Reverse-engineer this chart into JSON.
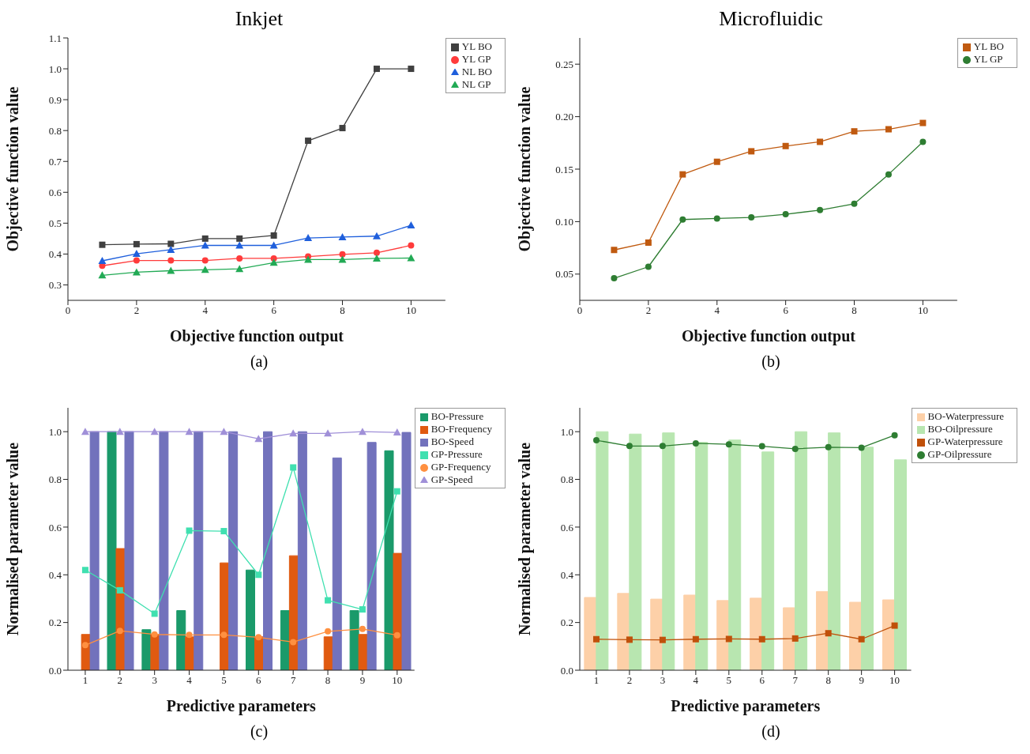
{
  "chart_data": [
    {
      "type": "line",
      "title": "Inkjet",
      "xlabel": "Objective function output",
      "ylabel": "Objective function value",
      "annotations": [
        "(a)"
      ],
      "x": [
        1,
        2,
        3,
        4,
        5,
        6,
        7,
        8,
        9,
        10
      ],
      "series": [
        {
          "name": "YL BO",
          "color": "#404040",
          "marker": "square",
          "values": [
            0.43,
            0.432,
            0.433,
            0.45,
            0.45,
            0.46,
            0.767,
            0.808,
            1.0,
            1.0
          ]
        },
        {
          "name": "YL GP",
          "color": "#ff3b3b",
          "marker": "circle",
          "values": [
            0.362,
            0.379,
            0.379,
            0.379,
            0.386,
            0.386,
            0.392,
            0.399,
            0.404,
            0.428
          ]
        },
        {
          "name": "NL BO",
          "color": "#1f5fdc",
          "marker": "triangle",
          "values": [
            0.378,
            0.401,
            0.414,
            0.428,
            0.428,
            0.428,
            0.452,
            0.455,
            0.458,
            0.493
          ]
        },
        {
          "name": "NL GP",
          "color": "#22aa55",
          "marker": "triangle",
          "values": [
            0.331,
            0.341,
            0.346,
            0.349,
            0.352,
            0.372,
            0.382,
            0.382,
            0.386,
            0.387
          ]
        }
      ],
      "xlim": [
        0,
        11
      ],
      "xticks": [
        0,
        2,
        4,
        6,
        8,
        10
      ],
      "ylim": [
        0.25,
        1.1
      ],
      "yticks": [
        0.3,
        0.4,
        0.5,
        0.6,
        0.7,
        0.8,
        0.9,
        {
          "value": 1.0,
          "label": "1.0"
        },
        1.1
      ],
      "legend": "top right"
    },
    {
      "type": "line",
      "title": "Microfluidic",
      "xlabel": "Objective function output",
      "ylabel": "Objective function value",
      "annotations": [
        "(b)"
      ],
      "x": [
        1,
        2,
        3,
        4,
        5,
        6,
        7,
        8,
        9,
        10
      ],
      "series": [
        {
          "name": "YL BO",
          "color": "#c05a10",
          "marker": "square",
          "values": [
            0.073,
            0.08,
            0.145,
            0.157,
            0.167,
            0.172,
            0.176,
            0.186,
            0.188,
            0.194
          ]
        },
        {
          "name": "YL GP",
          "color": "#2e7d32",
          "marker": "circle",
          "values": [
            0.046,
            0.057,
            0.102,
            0.103,
            0.104,
            0.107,
            0.111,
            0.117,
            0.145,
            0.176
          ]
        }
      ],
      "xlim": [
        0,
        11
      ],
      "xticks": [
        0,
        2,
        4,
        6,
        8,
        10
      ],
      "ylim": [
        0.025,
        0.275
      ],
      "yticks": [
        0.05,
        {
          "value": 0.1,
          "label": "0.10"
        },
        0.15,
        {
          "value": 0.2,
          "label": "0.20"
        },
        0.25
      ],
      "legend": "top right"
    },
    {
      "type": "bar",
      "xlabel": "Predictive parameters",
      "ylabel": "Normalised parameter value",
      "annotations": [
        "(c)"
      ],
      "categories": [
        "1",
        "2",
        "3",
        "4",
        "5",
        "6",
        "7",
        "8",
        "9",
        "10"
      ],
      "series": [
        {
          "name": "BO-Pressure",
          "color": "#1a9a6a",
          "values": [
            null,
            1.0,
            0.17,
            0.25,
            null,
            0.42,
            0.25,
            null,
            0.25,
            0.92
          ]
        },
        {
          "name": "BO-Frequency",
          "color": "#e05a10",
          "values": [
            0.15,
            0.51,
            0.15,
            0.14,
            0.45,
            0.14,
            0.48,
            0.14,
            0.15,
            0.49
          ]
        },
        {
          "name": "BO-Speed",
          "color": "#7272bc",
          "values": [
            1.0,
            1.0,
            1.0,
            1.0,
            1.0,
            1.0,
            1.0,
            0.89,
            0.955,
            0.997
          ]
        },
        {
          "name": "GP-Pressure",
          "type": "line",
          "color": "#40e0b0",
          "marker": "square",
          "values": [
            0.42,
            0.335,
            0.237,
            0.585,
            0.583,
            0.4,
            0.85,
            0.293,
            0.255,
            0.75
          ]
        },
        {
          "name": "GP-Frequency",
          "type": "line",
          "color": "#ff9040",
          "marker": "circle",
          "values": [
            0.105,
            0.165,
            0.15,
            0.148,
            0.148,
            0.138,
            0.118,
            0.163,
            0.173,
            0.147
          ]
        },
        {
          "name": "GP-Speed",
          "type": "line",
          "color": "#a090d8",
          "marker": "triangle",
          "values": [
            1.0,
            1.0,
            1.0,
            1.0,
            1.0,
            0.97,
            0.993,
            0.993,
            1.0,
            0.997
          ]
        }
      ],
      "ylim": [
        0,
        1.1
      ],
      "yticks": [
        {
          "value": 0,
          "label": "0.0"
        },
        0.2,
        0.4,
        0.6,
        0.8,
        {
          "value": 1.0,
          "label": "1.0"
        }
      ],
      "legend": "top right"
    },
    {
      "type": "bar",
      "xlabel": "Predictive parameters",
      "ylabel": "Normalised parameter value",
      "annotations": [
        "(d)"
      ],
      "categories": [
        "1",
        "2",
        "3",
        "4",
        "5",
        "6",
        "7",
        "8",
        "9",
        "10"
      ],
      "series": [
        {
          "name": "BO-Waterpressure",
          "color": "#fdd0a8",
          "values": [
            0.305,
            0.322,
            0.298,
            0.315,
            0.292,
            0.302,
            0.262,
            0.33,
            0.285,
            0.295
          ]
        },
        {
          "name": "BO-Oilpressure",
          "color": "#b8e6b0",
          "values": [
            1.0,
            0.99,
            0.995,
            0.955,
            0.965,
            0.915,
            1.0,
            0.995,
            0.935,
            0.882
          ]
        },
        {
          "name": "GP-Waterpressure",
          "type": "line",
          "color": "#c0500a",
          "marker": "square",
          "values": [
            0.13,
            0.128,
            0.127,
            0.13,
            0.131,
            0.13,
            0.133,
            0.155,
            0.13,
            0.187
          ]
        },
        {
          "name": "GP-Oilpressure",
          "type": "line",
          "color": "#2e7d32",
          "marker": "circle",
          "values": [
            0.964,
            0.94,
            0.94,
            0.951,
            0.947,
            0.939,
            0.928,
            0.935,
            0.933,
            0.985
          ]
        }
      ],
      "ylim": [
        0,
        1.1
      ],
      "yticks": [
        {
          "value": 0,
          "label": "0.0"
        },
        0.2,
        0.4,
        0.6,
        0.8,
        {
          "value": 1.0,
          "label": "1.0"
        }
      ],
      "legend": "top right"
    }
  ]
}
